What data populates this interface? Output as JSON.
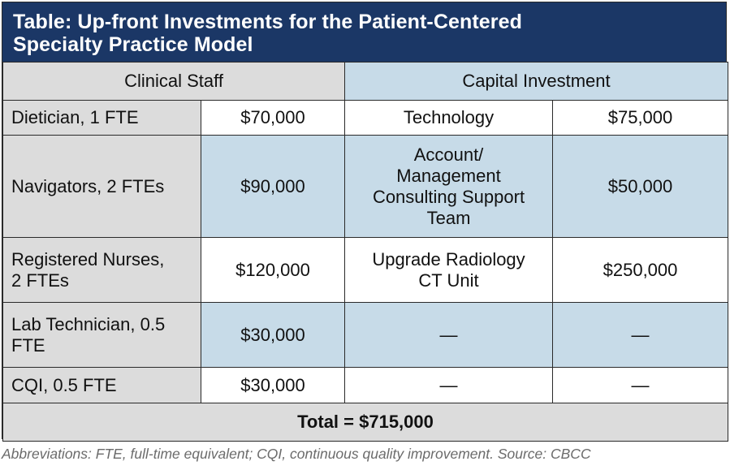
{
  "title": {
    "line1": "Table: Up-front Investments for the Patient-Centered",
    "line2": "Specialty Practice Model"
  },
  "headers": {
    "clinical_staff": "Clinical Staff",
    "capital_investment": "Capital Investment"
  },
  "rows": [
    {
      "staff": [
        "Dietician, 1 FTE"
      ],
      "staff_cost": "$70,000",
      "capital": [
        "Technology"
      ],
      "capital_cost": "$75,000"
    },
    {
      "staff": [
        "Navigators, 2 FTEs"
      ],
      "staff_cost": "$90,000",
      "capital": [
        "Account/",
        "Management",
        "Consulting Support",
        "Team"
      ],
      "capital_cost": "$50,000"
    },
    {
      "staff": [
        "Registered Nurses,",
        "2 FTEs"
      ],
      "staff_cost": "$120,000",
      "capital": [
        "Upgrade Radiology",
        "CT Unit"
      ],
      "capital_cost": "$250,000"
    },
    {
      "staff": [
        "Lab Technician, 0.5",
        "FTE"
      ],
      "staff_cost": "$30,000",
      "capital": [
        "—"
      ],
      "capital_cost": "—"
    },
    {
      "staff": [
        "CQI, 0.5 FTE"
      ],
      "staff_cost": "$30,000",
      "capital": [
        "—"
      ],
      "capital_cost": "—"
    }
  ],
  "total": "Total = $715,000",
  "footnote": "Abbreviations: FTE, full-time equivalent; CQI, continuous quality improvement. Source: CBCC",
  "colors": {
    "title_bg": "#1b3766",
    "gray_cell": "#dcdcdc",
    "blue_cell": "#c7dbe8",
    "white_cell": "#ffffff"
  }
}
